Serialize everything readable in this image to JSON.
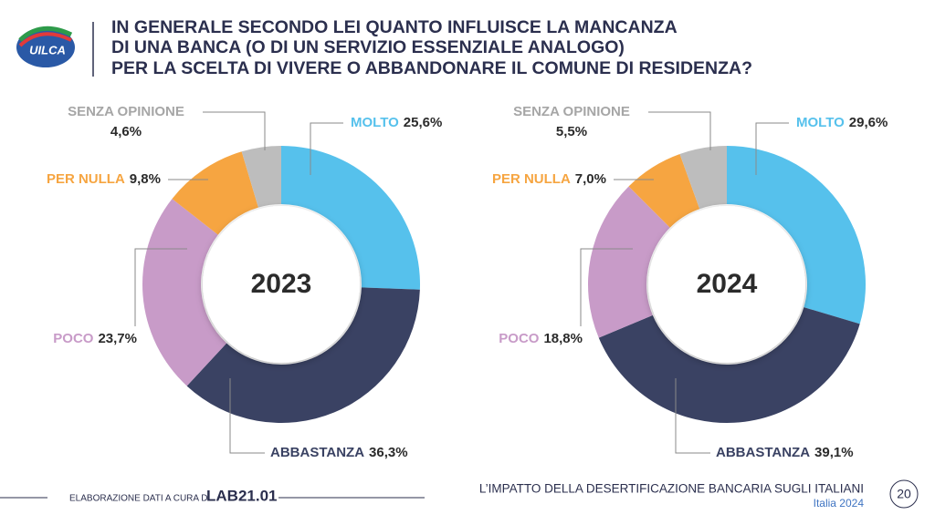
{
  "header": {
    "logo": "UILCA",
    "title": [
      "IN GENERALE SECONDO LEI QUANTO INFLUISCE LA MANCANZA",
      "DI UNA BANCA (O DI UN SERVIZIO ESSENZIALE ANALOGO)",
      "PER LA SCELTA DI VIVERE O ABBANDONARE IL COMUNE DI RESIDENZA?"
    ]
  },
  "chart_data": [
    {
      "type": "donut",
      "center_label": "2023",
      "categories": [
        "MOLTO",
        "ABBASTANZA",
        "POCO",
        "PER NULLA",
        "SENZA OPINIONE"
      ],
      "values": [
        25.6,
        36.3,
        23.7,
        9.8,
        4.6
      ],
      "value_labels": [
        "25,6%",
        "36,3%",
        "23,7%",
        "9,8%",
        "4,6%"
      ],
      "colors": [
        "#56c1ec",
        "#3a4263",
        "#c89bc8",
        "#f6a541",
        "#bdbdbd"
      ]
    },
    {
      "type": "donut",
      "center_label": "2024",
      "categories": [
        "MOLTO",
        "ABBASTANZA",
        "POCO",
        "PER NULLA",
        "SENZA OPINIONE"
      ],
      "values": [
        29.6,
        39.1,
        18.8,
        7.0,
        5.5
      ],
      "value_labels": [
        "29,6%",
        "39,1%",
        "18,8%",
        "7,0%",
        "5,5%"
      ],
      "colors": [
        "#56c1ec",
        "#3a4263",
        "#c89bc8",
        "#f6a541",
        "#bdbdbd"
      ]
    }
  ],
  "footer": {
    "credit": "ELABORAZIONE DATI A CURA DI",
    "lab": "LAB21.01",
    "report": "L’IMPATTO DELLA DESERTIFICAZIONE BANCARIA SUGLI ITALIANI",
    "subtitle": "Italia 2024",
    "page": "20"
  }
}
